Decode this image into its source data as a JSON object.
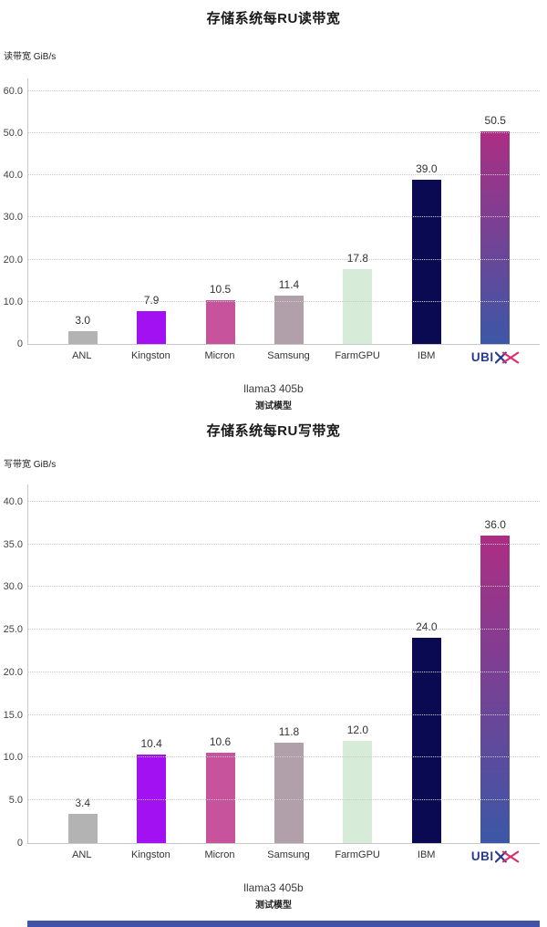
{
  "brand": {
    "name": "UBIX",
    "logo_text": "UBI",
    "blue": "#2b3a8f",
    "pink": "#d62e6e"
  },
  "footer": {
    "color": "#4055a8"
  },
  "chart_data": [
    {
      "id": "read-bandwidth",
      "type": "bar",
      "title": "存储系统每RU读带宽",
      "ylabel": "读带宽 GiB/s",
      "xlabel": "llama3 405b",
      "xlabel_sub": "测试模型",
      "categories": [
        "ANL",
        "Kingston",
        "Micron",
        "Samsung",
        "FarmGPU",
        "IBM",
        "UBIX"
      ],
      "values": [
        3.0,
        7.9,
        10.5,
        11.4,
        17.8,
        39.0,
        50.5
      ],
      "labels": [
        "3.0",
        "7.9",
        "10.5",
        "11.4",
        "17.8",
        "39.0",
        "50.5"
      ],
      "yticks": [
        0,
        10,
        20,
        30,
        40,
        50,
        60
      ],
      "ytick_labels": [
        "0",
        "10.0",
        "20.0",
        "30.0",
        "40.0",
        "50.0",
        "60.0"
      ],
      "ylim": [
        0,
        63
      ],
      "grid": "horizontal-dotted",
      "legend": false,
      "bar_colors": [
        "#b3b3b3",
        "#a211f2",
        "#c6539b",
        "#b1a0aa",
        "#d7ebd9",
        "#0a0a52",
        "gradient"
      ],
      "gradient": {
        "top": "#ac2e83",
        "bottom": "#3c57a7"
      }
    },
    {
      "id": "write-bandwidth",
      "type": "bar",
      "title": "存储系统每RU写带宽",
      "ylabel": "写带宽 GiB/s",
      "xlabel": "llama3 405b",
      "xlabel_sub": "测试模型",
      "categories": [
        "ANL",
        "Kingston",
        "Micron",
        "Samsung",
        "FarmGPU",
        "IBM",
        "UBIX"
      ],
      "values": [
        3.4,
        10.4,
        10.6,
        11.8,
        12.0,
        24.0,
        36.0
      ],
      "labels": [
        "3.4",
        "10.4",
        "10.6",
        "11.8",
        "12.0",
        "24.0",
        "36.0"
      ],
      "yticks": [
        0,
        5,
        10,
        15,
        20,
        25,
        30,
        35,
        40
      ],
      "ytick_labels": [
        "0",
        "5.0",
        "10.0",
        "15.0",
        "20.0",
        "25.0",
        "30.0",
        "35.0",
        "40.0"
      ],
      "ylim": [
        0,
        42
      ],
      "grid": "horizontal-dotted",
      "legend": false,
      "bar_colors": [
        "#b3b3b3",
        "#a211f2",
        "#c6539b",
        "#b1a0aa",
        "#d7ebd9",
        "#0a0a52",
        "gradient"
      ],
      "gradient": {
        "top": "#ac2e83",
        "bottom": "#3c57a7"
      }
    }
  ]
}
